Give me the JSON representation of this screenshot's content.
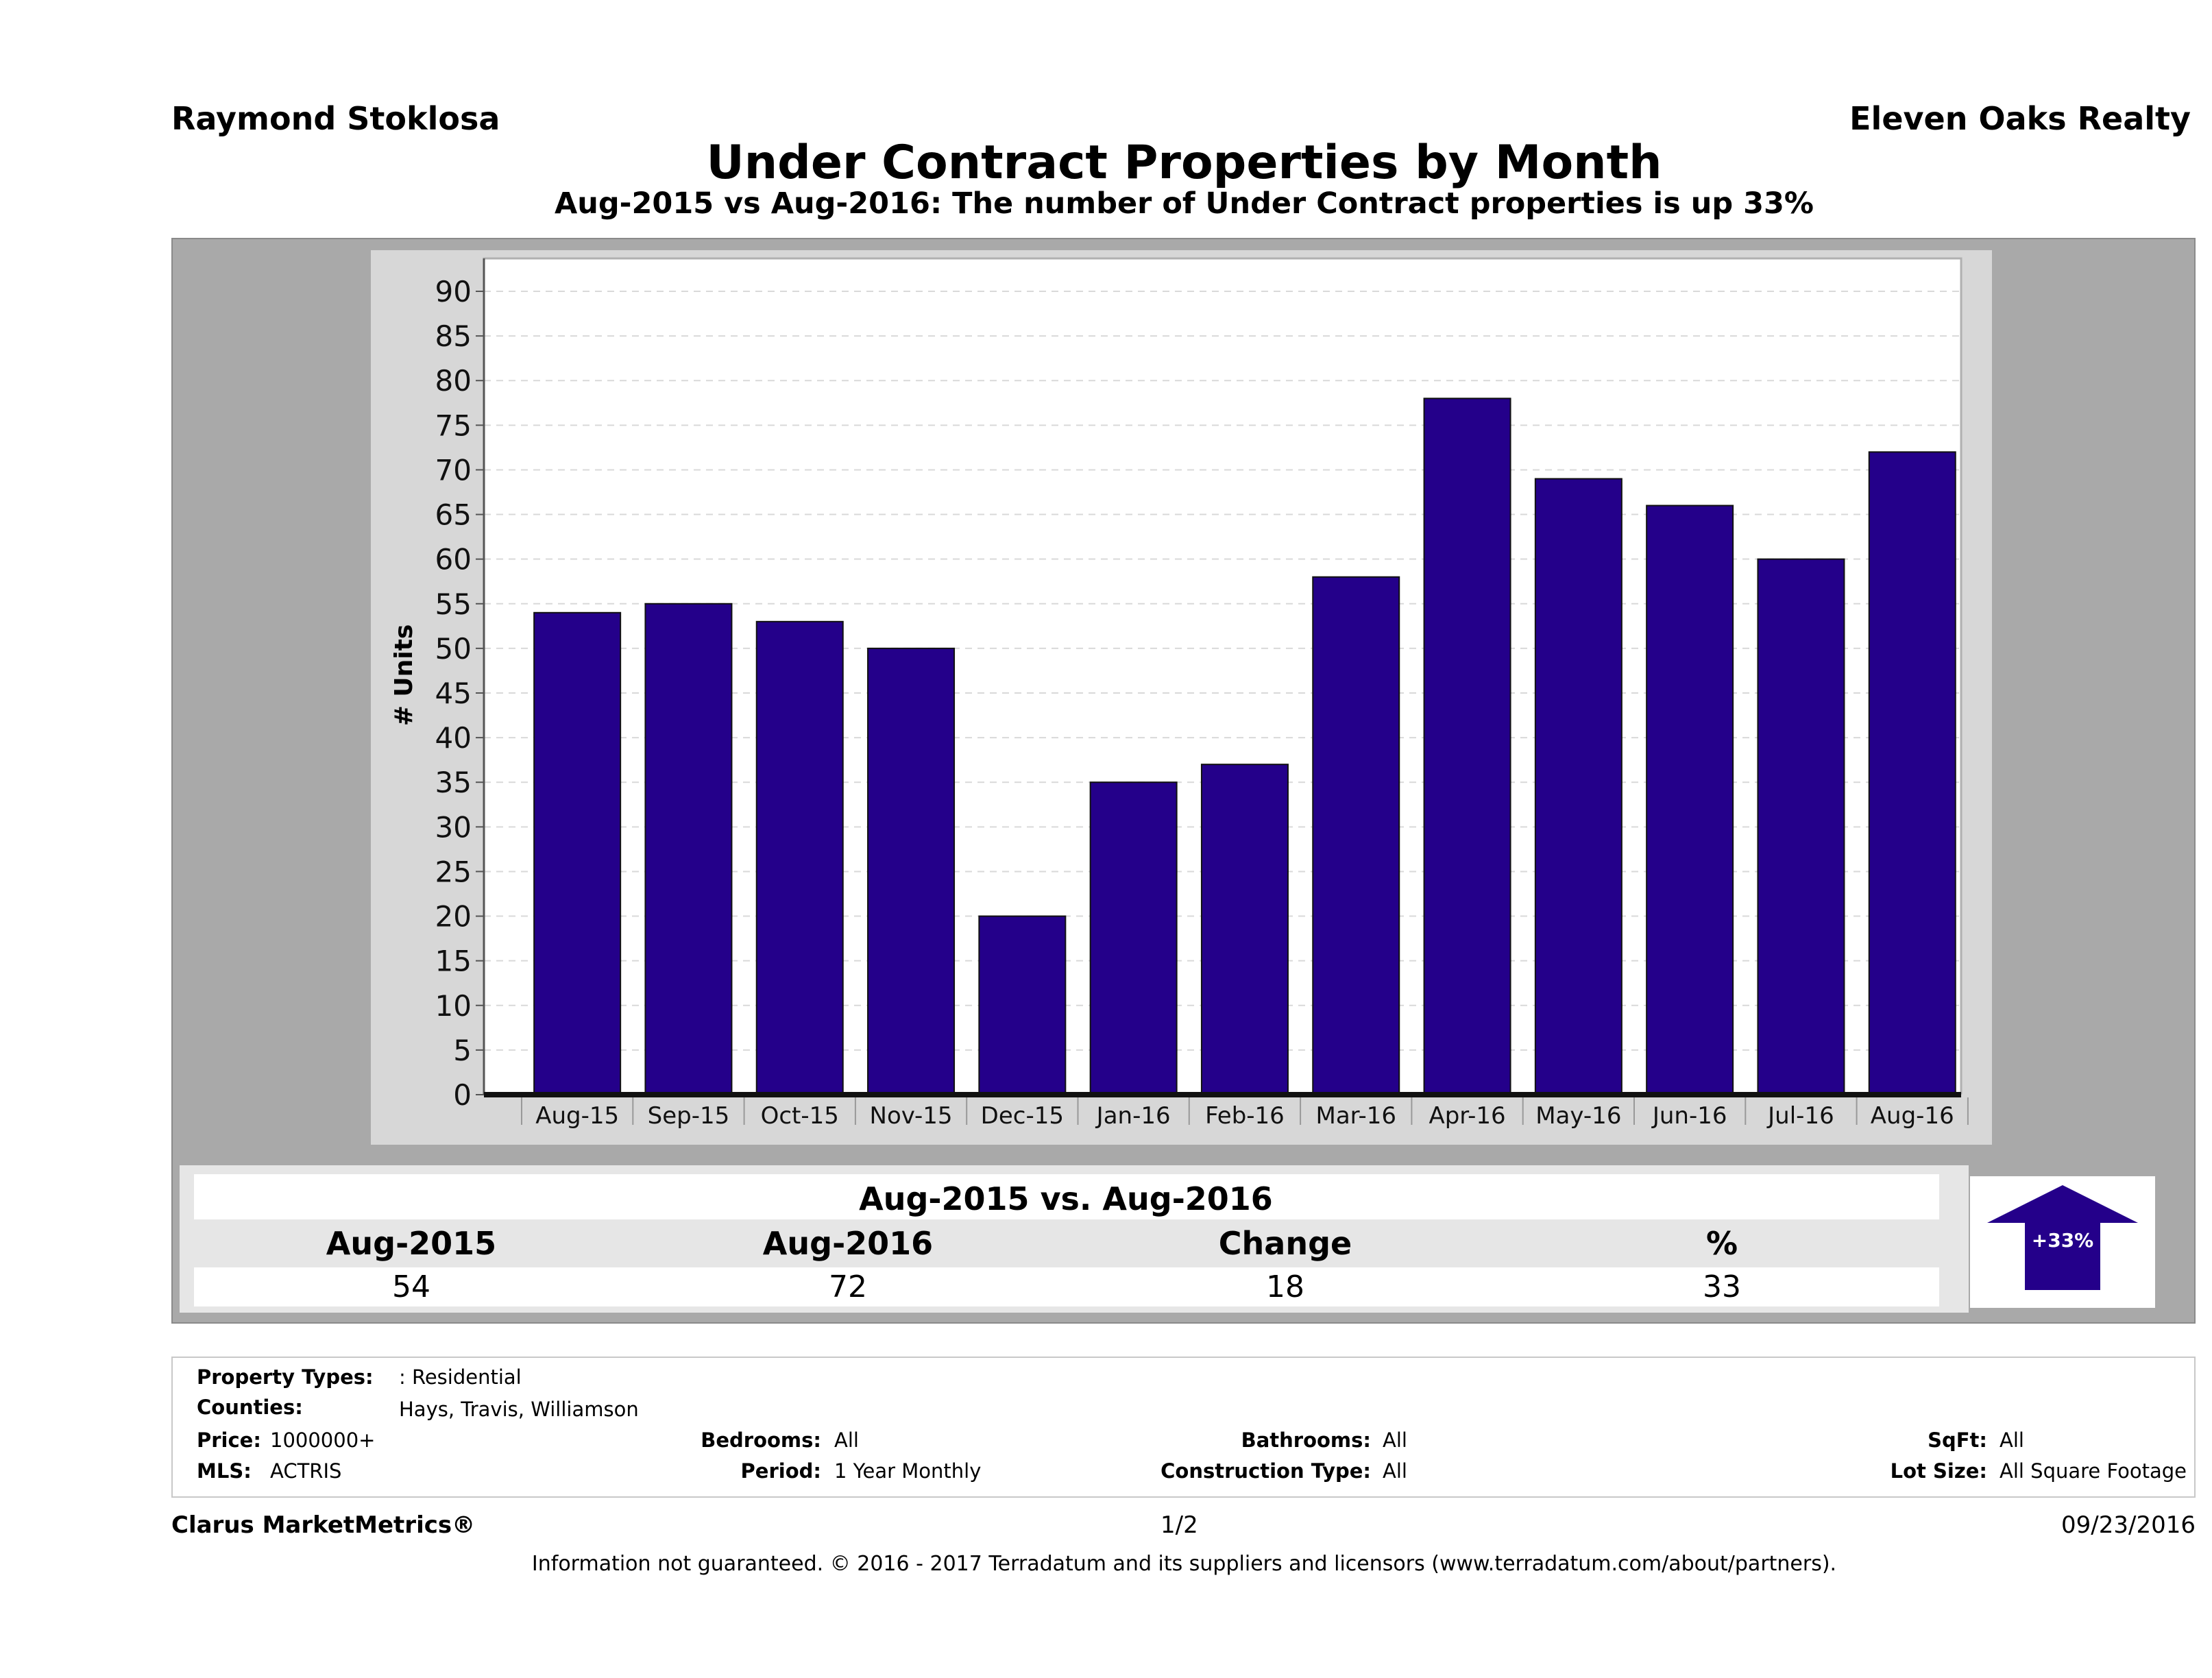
{
  "header": {
    "agent": "Raymond Stoklosa",
    "company": "Eleven Oaks Realty",
    "title": "Under Contract Properties by Month",
    "subtitle": "Aug-2015 vs Aug-2016: The number of Under Contract  properties is up 33%"
  },
  "chart_data": {
    "type": "bar",
    "categories": [
      "Aug-15",
      "Sep-15",
      "Oct-15",
      "Nov-15",
      "Dec-15",
      "Jan-16",
      "Feb-16",
      "Mar-16",
      "Apr-16",
      "May-16",
      "Jun-16",
      "Jul-16",
      "Aug-16"
    ],
    "values": [
      54,
      55,
      53,
      50,
      20,
      35,
      37,
      58,
      78,
      69,
      66,
      60,
      72
    ],
    "ylabel": "# Units",
    "ylim": [
      0,
      90
    ],
    "yticks": [
      0,
      5,
      10,
      15,
      20,
      25,
      30,
      35,
      40,
      45,
      50,
      55,
      60,
      65,
      70,
      75,
      80,
      85,
      90
    ],
    "grid": true,
    "bar_color": "#24008a"
  },
  "summary": {
    "title": "Aug-2015 vs. Aug-2016",
    "headers": [
      "Aug-2015",
      "Aug-2016",
      "Change",
      "%"
    ],
    "values": [
      "54",
      "72",
      "18",
      "33"
    ],
    "badge": "+33%",
    "badge_color": "#24008a"
  },
  "criteria": {
    "property_types_label": "Property Types:",
    "property_types_value": ": Residential",
    "counties_label": "Counties:",
    "counties_value": "Hays, Travis, Williamson",
    "price_label": "Price:",
    "price_value": "1000000+",
    "mls_label": "MLS:",
    "mls_value": "ACTRIS",
    "bedrooms_label": "Bedrooms:",
    "bedrooms_value": "All",
    "period_label": "Period:",
    "period_value": "1 Year Monthly",
    "bathrooms_label": "Bathrooms:",
    "bathrooms_value": "All",
    "construction_label": "Construction Type:",
    "construction_value": "All",
    "sqft_label": "SqFt:",
    "sqft_value": "All",
    "lot_label": "Lot Size:",
    "lot_value": "All Square Footage"
  },
  "footer": {
    "brand": "Clarus MarketMetrics®",
    "page": "1/2",
    "date": "09/23/2016",
    "disclaimer": "Information not guaranteed. © 2016 - 2017 Terradatum and its suppliers and licensors (www.terradatum.com/about/partners)."
  }
}
